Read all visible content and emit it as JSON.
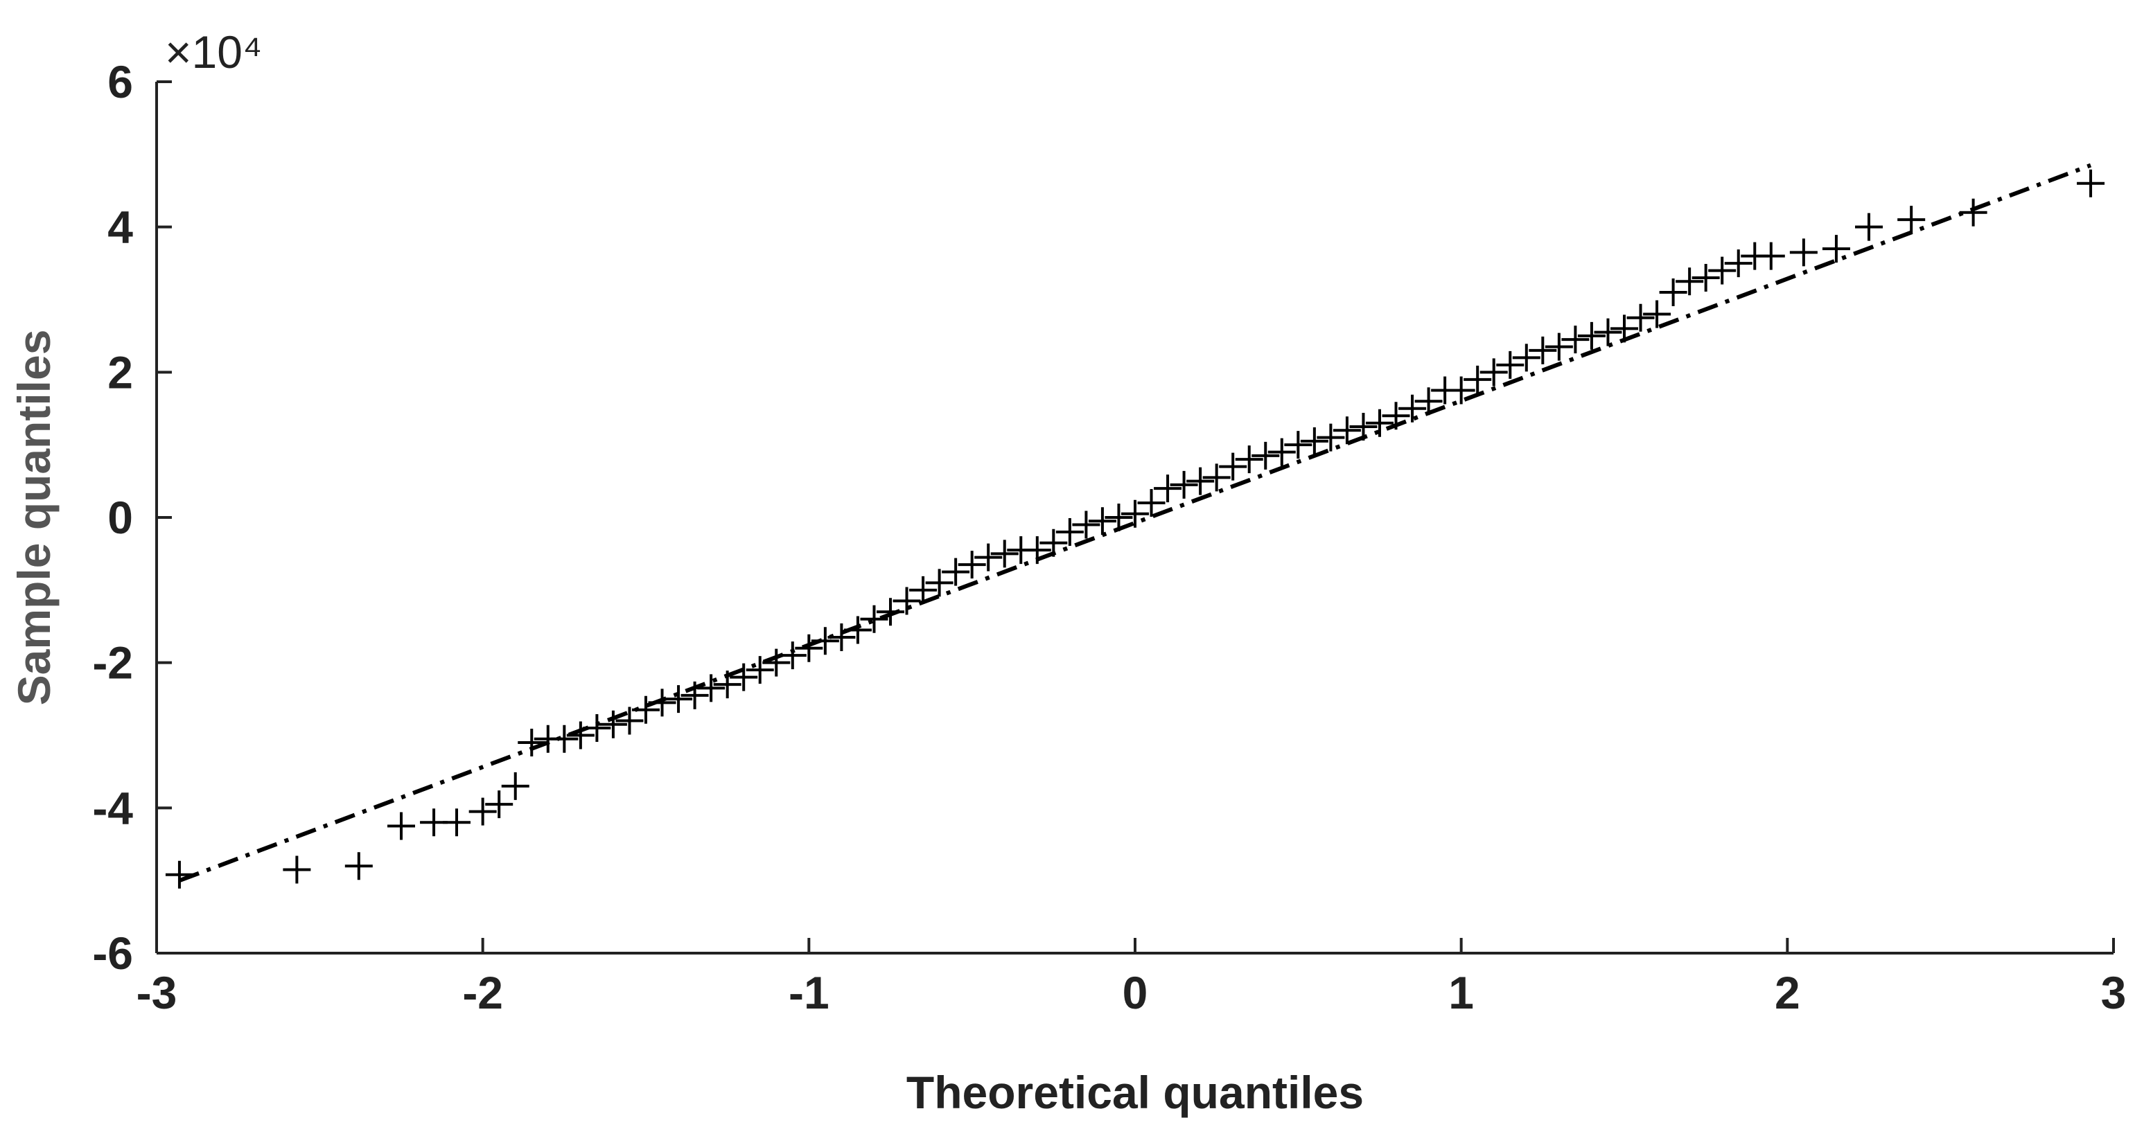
{
  "chart_data": {
    "type": "scatter",
    "xlabel": "Theoretical quantiles",
    "ylabel": "Sample quantiles",
    "y_multiplier_label": "×10⁴",
    "xlim": [
      -3,
      3
    ],
    "ylim": [
      -6,
      6
    ],
    "xticks": [
      -3,
      -2,
      -1,
      0,
      1,
      2,
      3
    ],
    "yticks": [
      -6,
      -4,
      -2,
      0,
      2,
      4,
      6
    ],
    "color": "#000000",
    "marker": "plus",
    "x": [
      -2.93,
      -2.57,
      -2.38,
      -2.25,
      -2.15,
      -2.08,
      -2.0,
      -1.95,
      -1.9,
      -1.85,
      -1.8,
      -1.75,
      -1.7,
      -1.65,
      -1.6,
      -1.55,
      -1.5,
      -1.45,
      -1.4,
      -1.35,
      -1.3,
      -1.25,
      -1.2,
      -1.15,
      -1.1,
      -1.05,
      -1.0,
      -0.95,
      -0.9,
      -0.85,
      -0.8,
      -0.75,
      -0.7,
      -0.65,
      -0.6,
      -0.55,
      -0.5,
      -0.45,
      -0.4,
      -0.35,
      -0.3,
      -0.25,
      -0.2,
      -0.15,
      -0.1,
      -0.05,
      0.0,
      0.05,
      0.1,
      0.15,
      0.2,
      0.25,
      0.3,
      0.35,
      0.4,
      0.45,
      0.5,
      0.55,
      0.6,
      0.65,
      0.7,
      0.75,
      0.8,
      0.85,
      0.9,
      0.95,
      1.0,
      1.05,
      1.1,
      1.15,
      1.2,
      1.25,
      1.3,
      1.35,
      1.4,
      1.45,
      1.5,
      1.55,
      1.6,
      1.65,
      1.7,
      1.75,
      1.8,
      1.85,
      1.9,
      1.95,
      2.05,
      2.15,
      2.25,
      2.38,
      2.57,
      2.93
    ],
    "y": [
      -4.92,
      -4.85,
      -4.8,
      -4.25,
      -4.2,
      -4.2,
      -4.05,
      -3.95,
      -3.7,
      -3.1,
      -3.05,
      -3.05,
      -3.0,
      -2.9,
      -2.85,
      -2.8,
      -2.65,
      -2.55,
      -2.5,
      -2.45,
      -2.35,
      -2.3,
      -2.2,
      -2.1,
      -2.0,
      -1.9,
      -1.8,
      -1.7,
      -1.65,
      -1.55,
      -1.4,
      -1.3,
      -1.15,
      -1.0,
      -0.9,
      -0.75,
      -0.65,
      -0.55,
      -0.5,
      -0.45,
      -0.45,
      -0.35,
      -0.2,
      -0.1,
      -0.05,
      0.0,
      0.05,
      0.2,
      0.4,
      0.45,
      0.5,
      0.55,
      0.7,
      0.8,
      0.85,
      0.9,
      1.0,
      1.05,
      1.1,
      1.2,
      1.25,
      1.3,
      1.4,
      1.5,
      1.6,
      1.75,
      1.75,
      1.9,
      2.0,
      2.1,
      2.2,
      2.3,
      2.35,
      2.45,
      2.5,
      2.55,
      2.6,
      2.75,
      2.8,
      3.1,
      3.25,
      3.3,
      3.4,
      3.5,
      3.6,
      3.6,
      3.65,
      3.7,
      4.0,
      4.1,
      4.2,
      4.6
    ],
    "reference_line": {
      "x": [
        -2.93,
        2.93
      ],
      "y": [
        -5.0,
        4.85
      ],
      "style": "dash-dot"
    }
  }
}
